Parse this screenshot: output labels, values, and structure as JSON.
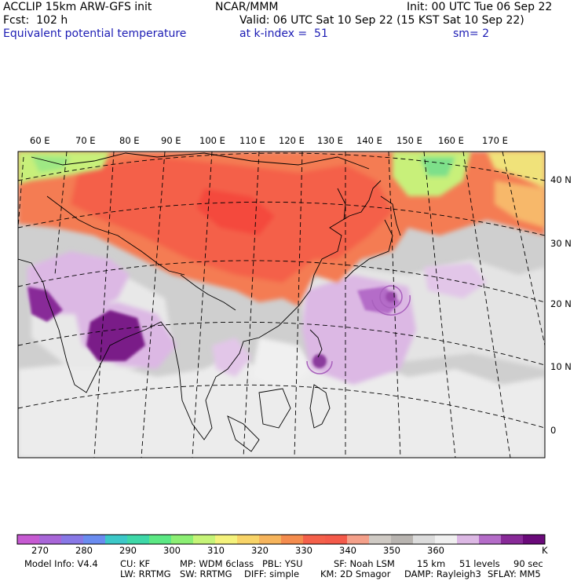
{
  "header": {
    "model": "ACCLIP 15km ARW-GFS init",
    "forecast": "Fcst:  102 h",
    "field": "Equivalent potential temperature",
    "center": "NCAR/MMM",
    "init": "Init: 00 UTC Tue 06 Sep 22",
    "valid": "Valid: 06 UTC Sat 10 Sep 22 (15 KST Sat 10 Sep 22)",
    "level": "at k-index =  51",
    "smoothing": "sm= 2"
  },
  "map": {
    "lon_labels": [
      "60 E",
      "70 E",
      "80 E",
      "90 E",
      "100 E",
      "110 E",
      "120 E",
      "130 E",
      "140 E",
      "150 E",
      "160 E",
      "170 E"
    ],
    "lat_labels": [
      "40 N",
      "30 N",
      "20 N",
      "10 N",
      "0"
    ],
    "colors": {
      "purple_dark": "#7a1a88",
      "purple_mid": "#b46cc8",
      "purple_light": "#dcb8e4",
      "gray_dark": "#b8b4b0",
      "gray_light": "#cfcfcf",
      "very_light": "#ececec",
      "orange_red": "#f4604a",
      "orange": "#f79a5a",
      "yellow_green": "#c8f07a",
      "green": "#7de08a"
    }
  },
  "colorbar": {
    "unit": "K",
    "tick_labels": [
      "270",
      "280",
      "290",
      "300",
      "310",
      "320",
      "330",
      "340",
      "350",
      "360"
    ],
    "colors": [
      "#c65ad2",
      "#a866d8",
      "#8878e6",
      "#6a8cf0",
      "#3cc8c8",
      "#3ed8a8",
      "#5ce884",
      "#8cef74",
      "#c6f478",
      "#f4f27c",
      "#f8d468",
      "#f6b45c",
      "#f48c4e",
      "#f4604a",
      "#f45a4a",
      "#f4a08a",
      "#cfcac4",
      "#b8b4b0",
      "#dcdcdc",
      "#f0f0f0",
      "#dcb8e4",
      "#b46cc8",
      "#882a98",
      "#6a0a7a"
    ]
  },
  "footer": {
    "line1": [
      "Model Info: V4.4",
      "CU: KF",
      "MP: WDM 6class",
      "PBL: YSU",
      "SF: Noah LSM",
      "15 km",
      "51 levels",
      "90 sec"
    ],
    "line2": [
      "LW: RRTMG",
      "SW: RRTMG",
      "DIFF: simple",
      "KM: 2D Smagor",
      "DAMP: Rayleigh3",
      "SFLAY: MM5"
    ]
  }
}
